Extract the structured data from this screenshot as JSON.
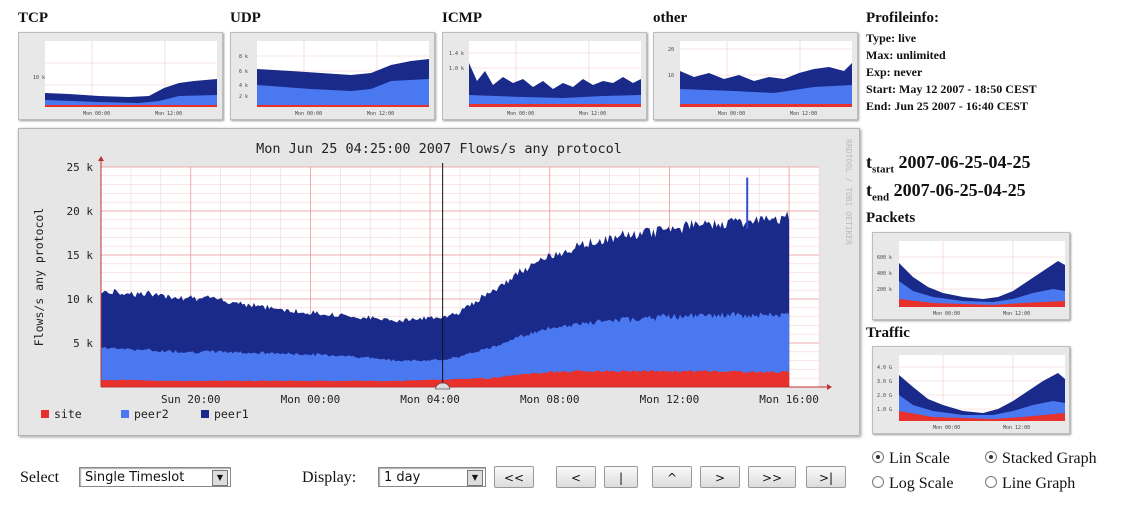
{
  "protocols": [
    {
      "title": "TCP",
      "ylabel": "10 k"
    },
    {
      "title": "UDP",
      "ylabels": [
        "8 k",
        "6 k",
        "4 k",
        "2 k"
      ]
    },
    {
      "title": "ICMP",
      "ylabels": [
        "1.4 k",
        "1.0 k"
      ]
    },
    {
      "title": "other",
      "ylabels": [
        "20",
        "10"
      ]
    }
  ],
  "thumb_xlabels": [
    "Mon 00:00",
    "Mon 12:00"
  ],
  "profileinfo": {
    "heading": "Profileinfo:",
    "type": "Type: live",
    "max": "Max:  unlimited",
    "exp": "Exp:  never",
    "start": "Start: May 12 2007 - 18:50 CEST",
    "end": "End:  Jun 25 2007 - 16:40 CEST"
  },
  "tstart": {
    "label": "t",
    "sub": "start",
    "value": "2007-06-25-04-25"
  },
  "tend": {
    "label": "t",
    "sub": "end",
    "value": "2007-06-25-04-25"
  },
  "packets": {
    "title": "Packets",
    "ylabels": [
      "600 k",
      "400 k",
      "200 k"
    ]
  },
  "traffic": {
    "title": "Traffic",
    "ylabels": [
      "4.0 G",
      "3.0 G",
      "2.0 G",
      "1.0 G"
    ]
  },
  "main_chart": {
    "watermark": "RRDTOOL / TOBI OETIKER"
  },
  "chart_data": {
    "type": "area",
    "title": "Mon Jun 25 04:25:00 2007 Flows/s any protocol",
    "ylabel": "Flows/s any protocol",
    "xlabel": "",
    "x_ticks": [
      "Sun 20:00",
      "Mon 00:00",
      "Mon 04:00",
      "Mon 08:00",
      "Mon 12:00",
      "Mon 16:00"
    ],
    "y_ticks": [
      "5 k",
      "10 k",
      "15 k",
      "20 k",
      "25 k"
    ],
    "ylim": [
      0,
      25000
    ],
    "stacked": true,
    "x_hours": [
      17,
      18,
      19,
      20,
      21,
      22,
      23,
      24,
      25,
      26,
      27,
      28,
      29,
      30,
      31,
      32,
      33,
      34,
      35,
      36,
      37,
      38,
      39,
      40
    ],
    "series": [
      {
        "name": "site",
        "color": "#e8302c",
        "values": [
          800,
          800,
          700,
          700,
          700,
          700,
          700,
          700,
          700,
          700,
          700,
          800,
          900,
          1000,
          1400,
          1700,
          1800,
          1800,
          1800,
          1800,
          1800,
          1800,
          1700,
          1700
        ]
      },
      {
        "name": "peer2",
        "color": "#4a78f0",
        "values": [
          3700,
          3500,
          3400,
          3300,
          3300,
          3200,
          3100,
          3000,
          2900,
          2600,
          2300,
          2200,
          2500,
          3500,
          4300,
          5000,
          5400,
          5700,
          6000,
          6200,
          6300,
          6400,
          6400,
          6500
        ]
      },
      {
        "name": "peer1",
        "color": "#1a2a8a",
        "values": [
          6300,
          6400,
          6300,
          6200,
          5900,
          5500,
          5000,
          4700,
          4600,
          4500,
          4600,
          4800,
          5100,
          6300,
          7300,
          8200,
          8800,
          9300,
          9700,
          10000,
          10400,
          10600,
          10800,
          11000
        ]
      }
    ],
    "cursor_x": "Mon 04:25",
    "grid": true,
    "legend": "bottom-left"
  },
  "controls": {
    "select_label": "Select",
    "select_value": "Single Timeslot",
    "display_label": "Display:",
    "display_value": "1 day",
    "nav": [
      "<<",
      "<",
      "|",
      "^",
      ">",
      ">>",
      ">|"
    ],
    "lin_scale": "Lin Scale",
    "log_scale": "Log Scale",
    "stacked_graph": "Stacked Graph",
    "line_graph": "Line Graph"
  }
}
